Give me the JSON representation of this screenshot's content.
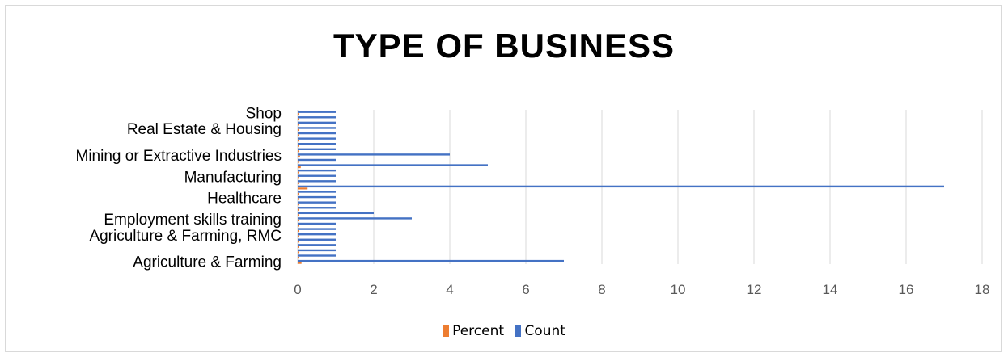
{
  "chart_data": {
    "type": "bar",
    "orientation": "horizontal",
    "title": "TYPE OF BUSINESS",
    "xlabel": "",
    "ylabel": "",
    "xlim": [
      0,
      18
    ],
    "xticks": [
      0,
      2,
      4,
      6,
      8,
      10,
      12,
      14,
      16,
      18
    ],
    "grid": true,
    "legend_position": "bottom",
    "categories_bottom_to_top": [
      "Agriculture & Farming",
      "",
      "",
      "",
      "",
      "Agriculture & Farming, RMC",
      "",
      "",
      "Employment skills training",
      "",
      "",
      "",
      "Healthcare",
      "",
      "",
      "",
      "Manufacturing",
      "",
      "",
      "",
      "Mining or Extractive Industries",
      "",
      "",
      "",
      "",
      "Real Estate & Housing",
      "",
      "",
      "Shop"
    ],
    "series": [
      {
        "name": "Count",
        "color": "#4472c4",
        "values": [
          7,
          1,
          1,
          1,
          1,
          1,
          1,
          1,
          3,
          2,
          1,
          1,
          1,
          1,
          17,
          1,
          1,
          1,
          5,
          1,
          4,
          1,
          1,
          1,
          1,
          1,
          1,
          1,
          1
        ]
      },
      {
        "name": "Percent",
        "color": "#ed7d31",
        "values": [
          0.1,
          0.01,
          0.01,
          0.01,
          0.01,
          0.01,
          0.01,
          0.01,
          0.04,
          0.03,
          0.01,
          0.01,
          0.01,
          0.01,
          0.26,
          0.01,
          0.01,
          0.01,
          0.08,
          0.01,
          0.06,
          0.01,
          0.01,
          0.01,
          0.01,
          0.01,
          0.01,
          0.01,
          0.01
        ]
      }
    ]
  },
  "legend": {
    "percent_label": "Percent",
    "count_label": "Count"
  },
  "colors": {
    "count": "#4472c4",
    "percent": "#ed7d31",
    "grid": "#d9d9d9"
  }
}
